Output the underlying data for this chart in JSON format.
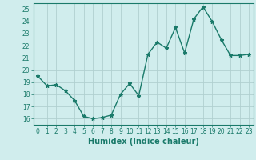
{
  "x": [
    0,
    1,
    2,
    3,
    4,
    5,
    6,
    7,
    8,
    9,
    10,
    11,
    12,
    13,
    14,
    15,
    16,
    17,
    18,
    19,
    20,
    21,
    22,
    23
  ],
  "y": [
    19.5,
    18.7,
    18.8,
    18.3,
    17.5,
    16.2,
    16.0,
    16.1,
    16.3,
    18.0,
    18.9,
    17.9,
    21.3,
    22.3,
    21.8,
    23.5,
    21.4,
    24.2,
    25.2,
    24.0,
    22.5,
    21.2,
    21.2,
    21.3
  ],
  "line_color": "#1a7a6a",
  "marker": "*",
  "marker_size": 3.5,
  "bg_color": "#d0eded",
  "grid_color": "#b0d0d0",
  "xlabel": "Humidex (Indice chaleur)",
  "ylim": [
    15.5,
    25.5
  ],
  "xlim": [
    -0.5,
    23.5
  ],
  "yticks": [
    16,
    17,
    18,
    19,
    20,
    21,
    22,
    23,
    24,
    25
  ],
  "xticks": [
    0,
    1,
    2,
    3,
    4,
    5,
    6,
    7,
    8,
    9,
    10,
    11,
    12,
    13,
    14,
    15,
    16,
    17,
    18,
    19,
    20,
    21,
    22,
    23
  ],
  "tick_color": "#1a7a6a",
  "label_fontsize": 7,
  "tick_fontsize": 5.5,
  "line_width": 1.0
}
